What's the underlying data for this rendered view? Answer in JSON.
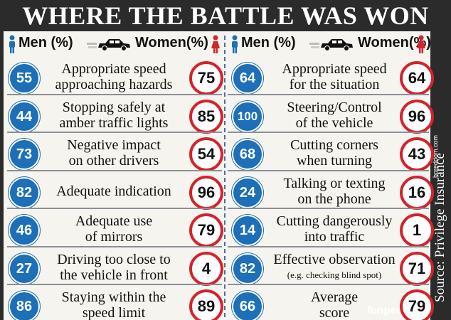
{
  "title": "WHERE THE BATTLE WAS WON",
  "header": {
    "men": "Men (%)",
    "women": "Women(%)"
  },
  "source": "Source: Privilege Insurance",
  "side_watermark": "boreddom.com",
  "footer": "funpeer.com",
  "colors": {
    "men": "#1d6fb8",
    "women": "#d4232b",
    "background": "#f6f4ee"
  },
  "chart_data": {
    "type": "table",
    "title": "WHERE THE BATTLE WAS WON",
    "columns": [
      "Men (%)",
      "Women(%)"
    ],
    "left": [
      {
        "label": [
          "Appropriate speed",
          "approaching hazards"
        ],
        "men": 55,
        "women": 75
      },
      {
        "label": [
          "Stopping safely at",
          "amber traffic lights"
        ],
        "men": 44,
        "women": 85
      },
      {
        "label": [
          "Negative impact",
          "on other drivers"
        ],
        "men": 73,
        "women": 54
      },
      {
        "label": [
          "Adequate indication"
        ],
        "men": 82,
        "women": 96
      },
      {
        "label": [
          "Adequate use",
          "of mirrors"
        ],
        "men": 46,
        "women": 79
      },
      {
        "label": [
          "Driving too close to",
          "the vehicle in front"
        ],
        "men": 27,
        "women": 4
      },
      {
        "label": [
          "Staying within the",
          "speed limit"
        ],
        "men": 86,
        "women": 89
      }
    ],
    "right": [
      {
        "label": [
          "Appropriate speed",
          "for the situation"
        ],
        "men": 64,
        "women": 64
      },
      {
        "label": [
          "Steering/Control",
          "of the vehicle"
        ],
        "men": 100,
        "women": 96
      },
      {
        "label": [
          "Cutting corners",
          "when turning"
        ],
        "men": 68,
        "women": 43
      },
      {
        "label": [
          "Talking or texting",
          "on the phone"
        ],
        "men": 24,
        "women": 16
      },
      {
        "label": [
          "Cutting dangerously",
          "into traffic"
        ],
        "men": 14,
        "women": 1
      },
      {
        "label": [
          "Effective observation",
          "(e.g. checking blind spot)"
        ],
        "men": 82,
        "women": 71
      },
      {
        "label": [
          "Average",
          "score"
        ],
        "men": 66,
        "women": 79
      }
    ]
  }
}
